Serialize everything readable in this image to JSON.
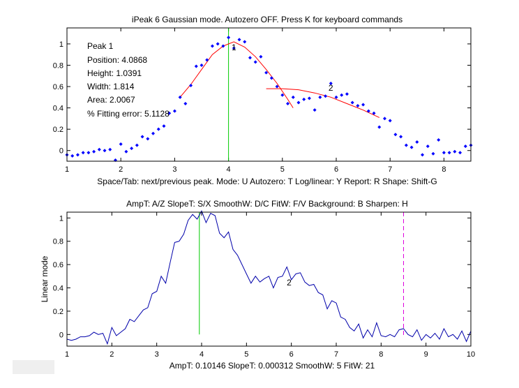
{
  "chart_data": [
    {
      "type": "scatter",
      "title": "iPeak 6  Gaussian mode.       Autozero OFF.    Press K for keyboard commands",
      "xlabel": "Space/Tab: next/previous peak.  Mode: U  Autozero: T   Log/linear: Y  Report: R   Shape: Shift-G",
      "ylabel": "",
      "xlim": [
        1,
        8.5
      ],
      "ylim": [
        -0.1,
        1.15
      ],
      "xticks": [
        1,
        2,
        3,
        4,
        5,
        6,
        7,
        8
      ],
      "yticks": [
        0,
        0.2,
        0.4,
        0.6,
        0.8,
        1
      ],
      "grid": false,
      "colors": {
        "points": "#0000ff",
        "fit": "#ff0000",
        "marker": "#00cc00"
      },
      "peak_info": [
        "Peak 1",
        "Position: 4.0868",
        "Height: 1.0391",
        "Width: 1.814",
        "Area: 2.0067",
        "% Fitting error: 5.1128"
      ],
      "peak_labels": [
        {
          "text": "1",
          "x": 4.1,
          "y": 0.94
        },
        {
          "text": "2",
          "x": 5.9,
          "y": 0.56
        }
      ],
      "marker_x": 4.0,
      "series": [
        {
          "x": [
            1,
            1.1,
            1.2,
            1.3,
            1.4,
            1.5,
            1.6,
            1.7,
            1.8,
            1.9,
            2.0,
            2.1,
            2.2,
            2.3,
            2.4,
            2.5,
            2.6,
            2.7,
            2.8,
            2.9,
            3.0,
            3.1,
            3.2,
            3.3,
            3.4,
            3.5,
            3.6,
            3.7,
            3.8,
            3.9,
            4.0,
            4.1,
            4.2,
            4.3,
            4.4,
            4.5,
            4.6,
            4.7,
            4.8,
            4.9,
            5.0,
            5.1,
            5.2,
            5.3,
            5.4,
            5.5,
            5.6,
            5.7,
            5.8,
            5.9,
            6.0,
            6.1,
            6.2,
            6.3,
            6.4,
            6.5,
            6.6,
            6.7,
            6.8,
            6.9,
            7.0,
            7.1,
            7.2,
            7.3,
            7.4,
            7.5,
            7.6,
            7.7,
            7.8,
            7.9,
            8.0,
            8.1,
            8.2,
            8.3,
            8.4,
            8.5
          ],
          "y": [
            -0.04,
            -0.05,
            -0.04,
            -0.02,
            -0.02,
            -0.01,
            0.01,
            0.0,
            0.01,
            -0.09,
            0.06,
            -0.01,
            0.02,
            0.05,
            0.13,
            0.11,
            0.16,
            0.2,
            0.23,
            0.35,
            0.37,
            0.5,
            0.44,
            0.61,
            0.79,
            0.8,
            0.85,
            0.98,
            1.0,
            0.98,
            1.06,
            0.96,
            1.04,
            1.02,
            0.87,
            0.83,
            0.88,
            0.73,
            0.68,
            0.6,
            0.52,
            0.44,
            0.5,
            0.45,
            0.48,
            0.49,
            0.38,
            0.5,
            0.51,
            0.63,
            0.5,
            0.52,
            0.53,
            0.45,
            0.42,
            0.43,
            0.37,
            0.35,
            0.22,
            0.3,
            0.28,
            0.15,
            0.13,
            0.05,
            0.03,
            0.08,
            -0.04,
            0.04,
            -0.03,
            0.1,
            -0.02,
            -0.02,
            -0.01,
            -0.02,
            0.04,
            0.05
          ]
        }
      ],
      "fits": [
        {
          "x": [
            3.1,
            3.3,
            3.5,
            3.7,
            3.9,
            4.1,
            4.3,
            4.5,
            4.7,
            4.9,
            5.1,
            5.2
          ],
          "y": [
            0.5,
            0.62,
            0.76,
            0.9,
            0.98,
            1.02,
            0.97,
            0.88,
            0.76,
            0.63,
            0.48,
            0.4
          ]
        },
        {
          "x": [
            4.7,
            5.0,
            5.3,
            5.6,
            5.9,
            6.2,
            6.5,
            6.8
          ],
          "y": [
            0.58,
            0.58,
            0.57,
            0.54,
            0.5,
            0.44,
            0.38,
            0.31
          ]
        }
      ]
    },
    {
      "type": "line",
      "title": "AmpT: A/Z    SlopeT: S/X    SmoothW: D/C       FitW: F/V    Background: B    Sharpen: H",
      "xlabel": "AmpT: 0.10146      SlopeT: 0.000312     SmoothW: 5     FitW: 21",
      "ylabel": "Linear mode",
      "xlim": [
        1,
        10
      ],
      "ylim": [
        -0.1,
        1.05
      ],
      "xticks": [
        1,
        2,
        3,
        4,
        5,
        6,
        7,
        8,
        9,
        10
      ],
      "yticks": [
        0,
        0.2,
        0.4,
        0.6,
        0.8,
        1
      ],
      "grid": false,
      "colors": {
        "line": "#0000aa",
        "marker": "#00cc00",
        "limit": "#dd00dd"
      },
      "peak_labels": [
        {
          "text": "2",
          "x": 5.95,
          "y": 0.42
        }
      ],
      "marker_x": 3.95,
      "limit_x": 8.5,
      "series": [
        {
          "x": [
            1,
            1.1,
            1.2,
            1.3,
            1.4,
            1.5,
            1.6,
            1.7,
            1.8,
            1.9,
            2.0,
            2.1,
            2.2,
            2.3,
            2.4,
            2.5,
            2.6,
            2.7,
            2.8,
            2.9,
            3.0,
            3.1,
            3.2,
            3.3,
            3.4,
            3.5,
            3.6,
            3.7,
            3.8,
            3.9,
            4.0,
            4.1,
            4.2,
            4.3,
            4.4,
            4.5,
            4.6,
            4.7,
            4.8,
            4.9,
            5.0,
            5.1,
            5.2,
            5.3,
            5.4,
            5.5,
            5.6,
            5.7,
            5.8,
            5.9,
            6.0,
            6.1,
            6.2,
            6.3,
            6.4,
            6.5,
            6.6,
            6.7,
            6.8,
            6.9,
            7.0,
            7.1,
            7.2,
            7.3,
            7.4,
            7.5,
            7.6,
            7.7,
            7.8,
            7.9,
            8.0,
            8.1,
            8.2,
            8.3,
            8.4,
            8.5,
            8.6,
            8.7,
            8.8,
            8.9,
            9.0,
            9.1,
            9.2,
            9.3,
            9.4,
            9.5,
            9.6,
            9.7,
            9.8,
            9.9,
            10.0
          ],
          "y": [
            -0.04,
            -0.05,
            -0.04,
            -0.02,
            -0.02,
            -0.01,
            0.02,
            0.0,
            0.01,
            -0.08,
            0.06,
            -0.01,
            0.02,
            0.05,
            0.13,
            0.11,
            0.16,
            0.21,
            0.23,
            0.35,
            0.37,
            0.5,
            0.44,
            0.62,
            0.79,
            0.8,
            0.86,
            0.98,
            1.03,
            0.99,
            1.06,
            0.96,
            1.04,
            1.02,
            0.87,
            0.83,
            0.88,
            0.73,
            0.68,
            0.6,
            0.52,
            0.44,
            0.5,
            0.45,
            0.48,
            0.5,
            0.4,
            0.49,
            0.5,
            0.58,
            0.47,
            0.52,
            0.53,
            0.45,
            0.42,
            0.43,
            0.36,
            0.34,
            0.22,
            0.29,
            0.27,
            0.15,
            0.13,
            0.06,
            0.03,
            0.09,
            -0.03,
            0.04,
            -0.02,
            0.1,
            -0.01,
            -0.02,
            0.0,
            -0.02,
            0.04,
            0.05,
            0.0,
            -0.02,
            0.04,
            -0.05,
            0.0,
            -0.03,
            0.01,
            -0.04,
            0.05,
            -0.02,
            0.0,
            -0.04,
            0.03,
            -0.06,
            0.03
          ]
        }
      ]
    }
  ]
}
